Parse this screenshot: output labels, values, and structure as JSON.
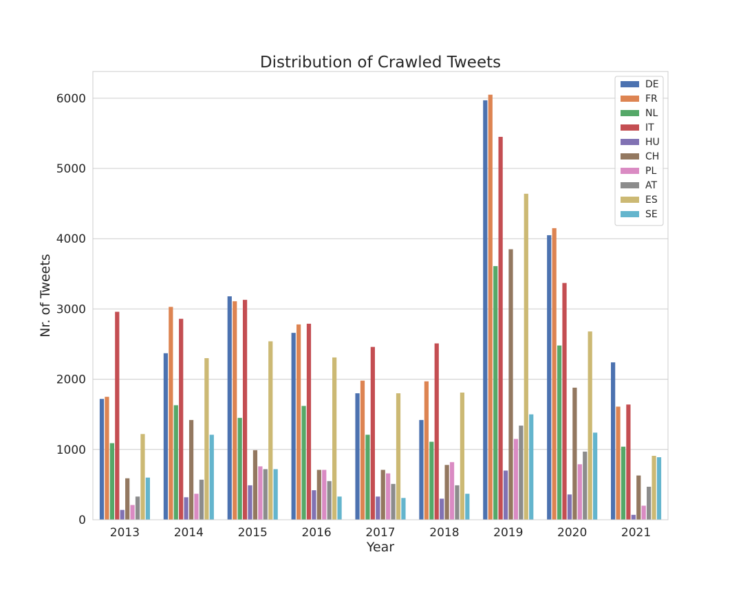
{
  "chart_data": {
    "type": "bar",
    "title": "Distribution of Crawled Tweets",
    "xlabel": "Year",
    "ylabel": "Nr. of Tweets",
    "ylim": [
      0,
      6380
    ],
    "yticks": [
      0,
      1000,
      2000,
      3000,
      4000,
      5000,
      6000
    ],
    "grid": "horizontal",
    "legend_position": "top-right",
    "categories": [
      "2013",
      "2014",
      "2015",
      "2016",
      "2017",
      "2018",
      "2019",
      "2020",
      "2021"
    ],
    "series": [
      {
        "name": "DE",
        "color": "#4c72b0",
        "values": [
          1720,
          2370,
          3180,
          2660,
          1800,
          1420,
          5970,
          4050,
          2240
        ]
      },
      {
        "name": "FR",
        "color": "#dd8452",
        "values": [
          1750,
          3030,
          3110,
          2780,
          1980,
          1970,
          6050,
          4150,
          1610
        ]
      },
      {
        "name": "NL",
        "color": "#55a868",
        "values": [
          1090,
          1630,
          1450,
          1620,
          1210,
          1110,
          3610,
          2480,
          1040
        ]
      },
      {
        "name": "IT",
        "color": "#c44e52",
        "values": [
          2960,
          2860,
          3130,
          2790,
          2460,
          2510,
          5450,
          3370,
          1640
        ]
      },
      {
        "name": "HU",
        "color": "#8172b3",
        "values": [
          140,
          320,
          490,
          420,
          330,
          300,
          700,
          360,
          70
        ]
      },
      {
        "name": "CH",
        "color": "#937860",
        "values": [
          590,
          1420,
          990,
          710,
          710,
          780,
          3850,
          1880,
          630
        ]
      },
      {
        "name": "PL",
        "color": "#da8bc3",
        "values": [
          210,
          370,
          760,
          710,
          660,
          820,
          1150,
          790,
          200
        ]
      },
      {
        "name": "AT",
        "color": "#8c8c8c",
        "values": [
          330,
          570,
          720,
          550,
          510,
          490,
          1340,
          970,
          470
        ]
      },
      {
        "name": "ES",
        "color": "#ccb974",
        "values": [
          1220,
          2300,
          2540,
          2310,
          1800,
          1810,
          4640,
          2680,
          910
        ]
      },
      {
        "name": "SE",
        "color": "#64b5cd",
        "values": [
          600,
          1210,
          720,
          330,
          310,
          370,
          1500,
          1240,
          890
        ]
      }
    ]
  }
}
